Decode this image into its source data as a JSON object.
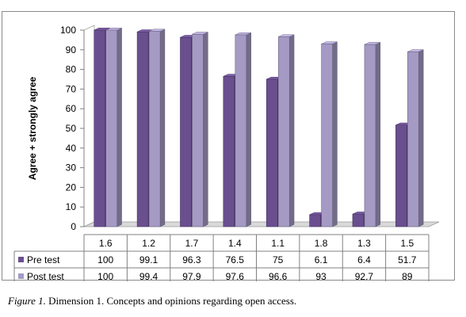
{
  "chart_data": {
    "type": "bar",
    "categories": [
      "1.6",
      "1.2",
      "1.7",
      "1.4",
      "1.1",
      "1.8",
      "1.3",
      "1.5"
    ],
    "series": [
      {
        "name": "Pre test",
        "values": [
          100,
          99.1,
          96.3,
          76.5,
          75,
          6.1,
          6.4,
          51.7
        ],
        "color": "#6a4f8f"
      },
      {
        "name": "Post test",
        "values": [
          100,
          99.4,
          97.9,
          97.6,
          96.6,
          93,
          92.7,
          89
        ],
        "color": "#a49ac4"
      }
    ],
    "title": "",
    "xlabel": "",
    "ylabel": "Agree + strongly agree",
    "ylim": [
      0,
      100
    ],
    "yticks": [
      0,
      10,
      20,
      30,
      40,
      50,
      60,
      70,
      80,
      90,
      100
    ],
    "grid": false,
    "legend": "data-table",
    "style": "3d-clustered-column"
  },
  "caption": {
    "label": "Figure 1.",
    "text": " Dimension 1. Concepts and opinions regarding open access."
  }
}
